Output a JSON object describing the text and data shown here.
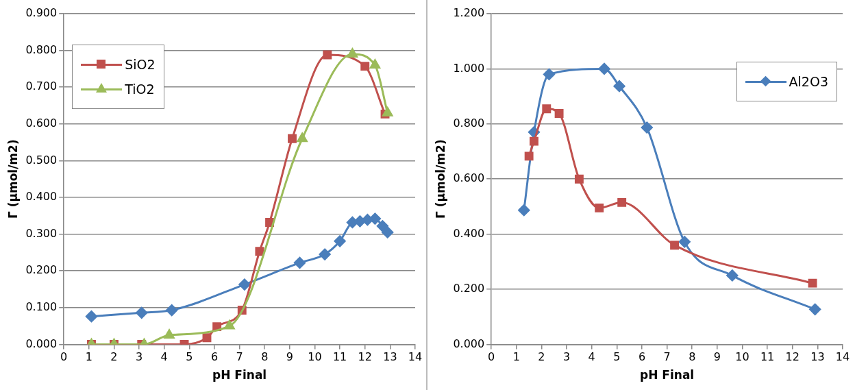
{
  "chart_data": [
    {
      "type": "line",
      "xlabel": "pH Final",
      "ylabel": "Γ (µmol/m2)",
      "xlim": [
        0,
        14
      ],
      "xticks": [
        0,
        1,
        2,
        3,
        4,
        5,
        6,
        7,
        8,
        9,
        10,
        11,
        12,
        13,
        14
      ],
      "ylim": [
        0,
        0.9
      ],
      "yticks": [
        {
          "value": 0,
          "label": "0.000"
        },
        {
          "value": 0.1,
          "label": "0.100"
        },
        {
          "value": 0.2,
          "label": "0.200"
        },
        {
          "value": 0.3,
          "label": "0.300"
        },
        {
          "value": 0.4,
          "label": "0.400"
        },
        {
          "value": 0.5,
          "label": "0.500"
        },
        {
          "value": 0.6,
          "label": "0.600"
        },
        {
          "value": 0.7,
          "label": "0.700"
        },
        {
          "value": 0.8,
          "label": "0.800"
        },
        {
          "value": 0.9,
          "label": "0.900"
        }
      ],
      "grid": "y",
      "legend": "top left",
      "series": [
        {
          "color": "#4a7ebb",
          "marker": "diamond",
          "x": [
            1.1,
            3.1,
            4.3,
            7.2,
            9.4,
            10.4,
            11.0,
            11.5,
            11.8,
            12.1,
            12.4,
            12.7,
            12.9
          ],
          "values": [
            0.076,
            0.086,
            0.093,
            0.163,
            0.222,
            0.245,
            0.281,
            0.332,
            0.335,
            0.339,
            0.342,
            0.322,
            0.305
          ]
        },
        {
          "name": "SiO2",
          "color": "#c0504d",
          "marker": "square",
          "x": [
            1.1,
            2.0,
            3.1,
            4.8,
            5.7,
            6.1,
            7.1,
            7.8,
            8.2,
            9.1,
            10.5,
            12.0,
            12.8
          ],
          "values": [
            0,
            0,
            0,
            0,
            0.018,
            0.048,
            0.093,
            0.253,
            0.332,
            0.56,
            0.788,
            0.757,
            0.627
          ]
        },
        {
          "name": "TiO2",
          "color": "#9bbb59",
          "marker": "triangle",
          "x": [
            1.1,
            2.0,
            3.2,
            4.2,
            6.6,
            9.5,
            11.5,
            12.4,
            12.9
          ],
          "values": [
            0,
            0,
            0,
            0.025,
            0.05,
            0.56,
            0.79,
            0.76,
            0.63
          ]
        }
      ]
    },
    {
      "type": "line",
      "xlabel": "pH Final",
      "ylabel": "Γ (µmol/m2)",
      "xlim": [
        0,
        14
      ],
      "xticks": [
        0,
        1,
        2,
        3,
        4,
        5,
        6,
        7,
        8,
        9,
        10,
        11,
        12,
        13,
        14
      ],
      "ylim": [
        0,
        1.2
      ],
      "yticks": [
        {
          "value": 0,
          "label": "0.000"
        },
        {
          "value": 0.2,
          "label": "0.200"
        },
        {
          "value": 0.4,
          "label": "0.400"
        },
        {
          "value": 0.6,
          "label": "0.600"
        },
        {
          "value": 0.8,
          "label": "0.800"
        },
        {
          "value": 1.0,
          "label": "1.000"
        },
        {
          "value": 1.2,
          "label": "1.200"
        }
      ],
      "grid": "y",
      "legend": "top right",
      "series": [
        {
          "name": "Al2O3",
          "color": "#4a7ebb",
          "marker": "diamond",
          "x": [
            1.3,
            1.7,
            2.3,
            4.5,
            5.1,
            6.2,
            7.7,
            9.6,
            12.9
          ],
          "values": [
            0.487,
            0.77,
            0.98,
            1.0,
            0.937,
            0.787,
            0.372,
            0.25,
            0.127
          ]
        },
        {
          "color": "#c0504d",
          "marker": "square",
          "x": [
            1.5,
            1.7,
            2.2,
            2.7,
            3.5,
            4.3,
            5.2,
            7.3,
            12.8
          ],
          "values": [
            0.683,
            0.737,
            0.855,
            0.838,
            0.6,
            0.495,
            0.515,
            0.36,
            0.222
          ]
        }
      ]
    }
  ]
}
